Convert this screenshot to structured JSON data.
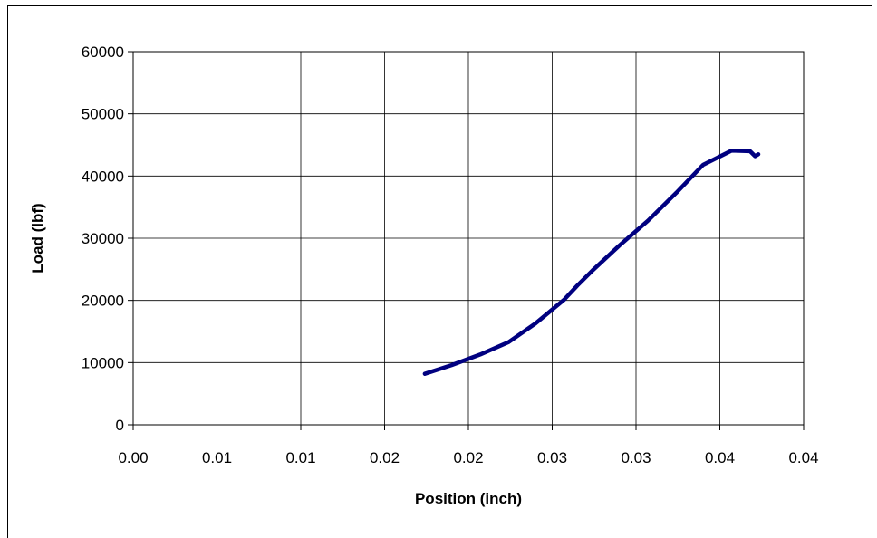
{
  "chart_data": {
    "type": "line",
    "title": "",
    "xlabel": "Position (inch)",
    "ylabel": "Load (lbf)",
    "xlim": [
      0,
      0.04
    ],
    "ylim": [
      0,
      60000
    ],
    "x_tick_labels": [
      "0.00",
      "0.01",
      "0.01",
      "0.02",
      "0.02",
      "0.03",
      "0.03",
      "0.04",
      "0.04"
    ],
    "y_tick_labels": [
      "0",
      "10000",
      "20000",
      "30000",
      "40000",
      "50000",
      "60000"
    ],
    "grid": true,
    "legend": "none",
    "colors": {
      "series": "#000080",
      "grid": "#000000"
    },
    "series": [
      {
        "x": [
          0.0174,
          0.019,
          0.0207,
          0.0224,
          0.024,
          0.0257,
          0.0265,
          0.0274,
          0.029,
          0.0307,
          0.0324,
          0.034,
          0.0357,
          0.0368,
          0.0371,
          0.0373
        ],
        "y": [
          8200,
          9600,
          11300,
          13300,
          16300,
          20100,
          22400,
          24800,
          28800,
          32800,
          37300,
          41800,
          44100,
          44000,
          43200,
          43500
        ]
      }
    ]
  }
}
